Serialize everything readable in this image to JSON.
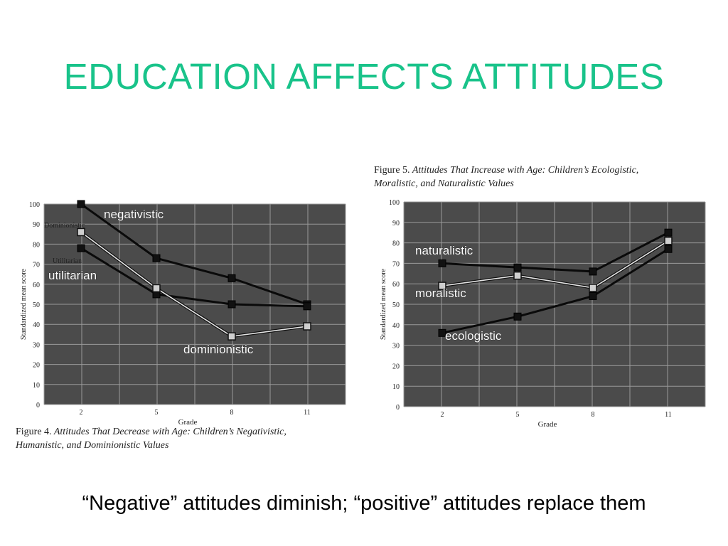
{
  "slide": {
    "title": "EDUCATION AFFECTS ATTITUDES",
    "subtitle": "“Negative” attitudes diminish; “positive” attitudes replace them",
    "title_color": "#19c38a"
  },
  "chart_data": [
    {
      "type": "line",
      "figure_label": "Figure 4.",
      "caption_line1": "Attitudes That Decrease with Age: Children’s Negativistic,",
      "caption_line2": "Humanistic, and Dominionistic Values",
      "xlabel": "Grade",
      "ylabel": "Standardized mean score",
      "x": [
        2,
        5,
        8,
        11
      ],
      "ylim": [
        0,
        100
      ],
      "yticks": [
        "0",
        "10",
        "20",
        "30",
        "40",
        "50",
        "60",
        "70",
        "80",
        "90",
        "100"
      ],
      "xticks": [
        "2",
        "5",
        "8",
        "11"
      ],
      "grid": true,
      "series": [
        {
          "name": "negativistic",
          "values": [
            100,
            73,
            63,
            50
          ],
          "style": "dark"
        },
        {
          "name": "utilitarian",
          "values": [
            78,
            55,
            50,
            49
          ],
          "style": "dark"
        },
        {
          "name": "dominionistic",
          "values": [
            86,
            58,
            34,
            39
          ],
          "style": "light"
        }
      ],
      "printed_labels": [
        "Dominionistic",
        "Utilitarian"
      ],
      "overlay_labels": [
        "negativistic",
        "utilitarian",
        "dominionistic"
      ]
    },
    {
      "type": "line",
      "figure_label": "Figure 5.",
      "caption_line1": "Attitudes That Increase with Age: Children’s Ecologistic,",
      "caption_line2": "Moralistic, and Naturalistic Values",
      "xlabel": "Grade",
      "ylabel": "Standardized mean score",
      "x": [
        2,
        5,
        8,
        11
      ],
      "ylim": [
        0,
        100
      ],
      "yticks": [
        "0",
        "10",
        "20",
        "30",
        "40",
        "50",
        "60",
        "70",
        "80",
        "90",
        "100"
      ],
      "xticks": [
        "2",
        "5",
        "8",
        "11"
      ],
      "grid": true,
      "series": [
        {
          "name": "naturalistic",
          "values": [
            70,
            68,
            66,
            85
          ],
          "style": "dark"
        },
        {
          "name": "moralistic",
          "values": [
            59,
            64,
            58,
            81
          ],
          "style": "light"
        },
        {
          "name": "ecologistic",
          "values": [
            36,
            44,
            54,
            77
          ],
          "style": "dark"
        }
      ],
      "overlay_labels": [
        "naturalistic",
        "moralistic",
        "ecologistic"
      ]
    }
  ]
}
